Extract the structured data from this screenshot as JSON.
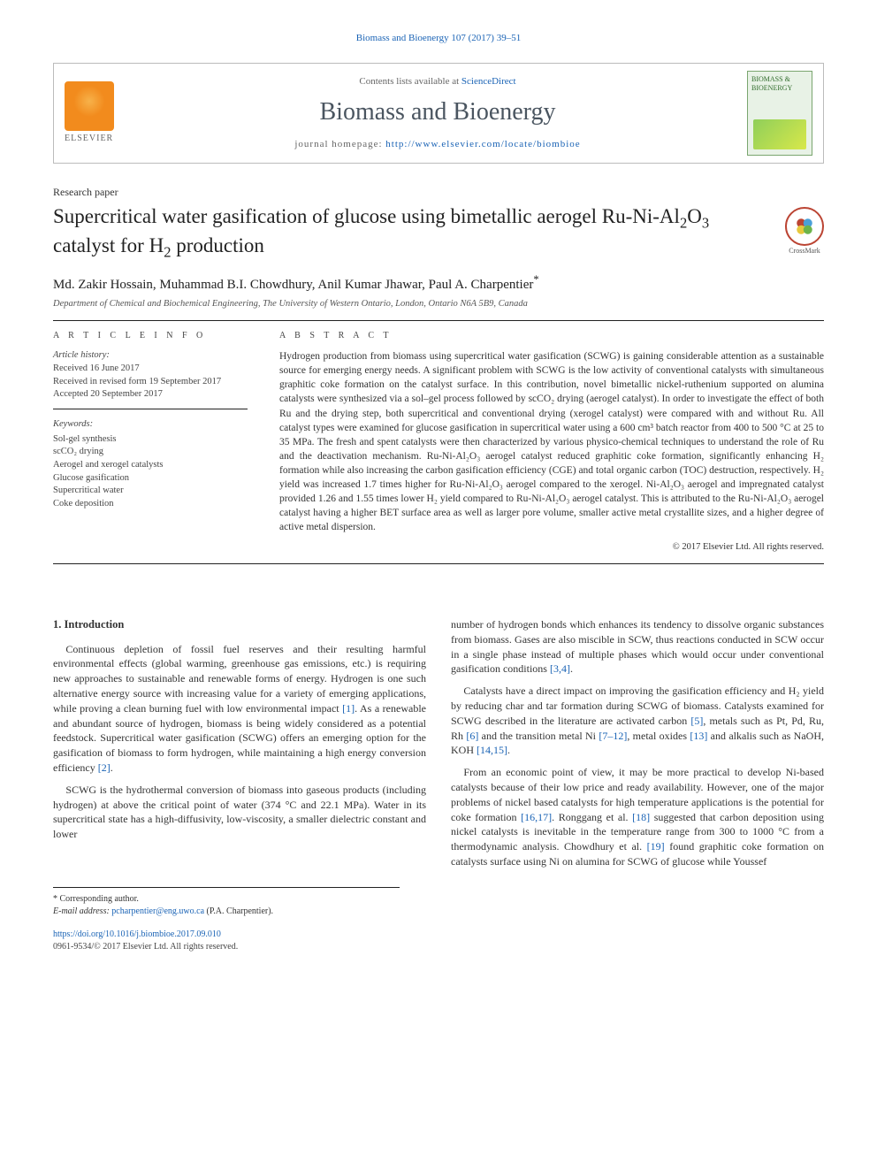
{
  "header": {
    "citation": "Biomass and Bioenergy 107 (2017) 39–51",
    "contents_prefix": "Contents lists available at ",
    "contents_link": "ScienceDirect",
    "journal_name": "Biomass and Bioenergy",
    "homepage_prefix": "journal homepage: ",
    "homepage_url": "http://www.elsevier.com/locate/biombioe",
    "publisher_word": "ELSEVIER",
    "cover_text": "BIOMASS & BIOENERGY"
  },
  "paper": {
    "type": "Research paper",
    "title_html": "Supercritical water gasification of glucose using bimetallic aerogel Ru-Ni-Al<sub>2</sub>O<sub>3</sub> catalyst for H<sub>2</sub> production",
    "crossmark_label": "CrossMark",
    "authors": "Md. Zakir Hossain, Muhammad B.I. Chowdhury, Anil Kumar Jhawar, Paul A. Charpentier",
    "corresponding_marker": "*",
    "affiliation": "Department of Chemical and Biochemical Engineering, The University of Western Ontario, London, Ontario N6A 5B9, Canada"
  },
  "article_info": {
    "heading": "A R T I C L E  I N F O",
    "history_label": "Article history:",
    "received": "Received 16 June 2017",
    "revised": "Received in revised form 19 September 2017",
    "accepted": "Accepted 20 September 2017",
    "keywords_label": "Keywords:",
    "keywords": [
      "Sol-gel synthesis",
      "scCO₂ drying",
      "Aerogel and xerogel catalysts",
      "Glucose gasification",
      "Supercritical water",
      "Coke deposition"
    ]
  },
  "abstract": {
    "heading": "A B S T R A C T",
    "text": "Hydrogen production from biomass using supercritical water gasification (SCWG) is gaining considerable attention as a sustainable source for emerging energy needs. A significant problem with SCWG is the low activity of conventional catalysts with simultaneous graphitic coke formation on the catalyst surface. In this contribution, novel bimetallic nickel-ruthenium supported on alumina catalysts were synthesized via a sol–gel process followed by scCO₂ drying (aerogel catalyst). In order to investigate the effect of both Ru and the drying step, both supercritical and conventional drying (xerogel catalyst) were compared with and without Ru. All catalyst types were examined for glucose gasification in supercritical water using a 600 cm³ batch reactor from 400 to 500 °C at 25 to 35 MPa. The fresh and spent catalysts were then characterized by various physico-chemical techniques to understand the role of Ru and the deactivation mechanism. Ru-Ni-Al₂O₃ aerogel catalyst reduced graphitic coke formation, significantly enhancing H₂ formation while also increasing the carbon gasification efficiency (CGE) and total organic carbon (TOC) destruction, respectively. H₂ yield was increased 1.7 times higher for Ru-Ni-Al₂O₃ aerogel compared to the xerogel. Ni-Al₂O₃ aerogel and impregnated catalyst provided 1.26 and 1.55 times lower H₂ yield compared to Ru-Ni-Al₂O₃ aerogel catalyst. This is attributed to the Ru-Ni-Al₂O₃ aerogel catalyst having a higher BET surface area as well as larger pore volume, smaller active metal crystallite sizes, and a higher degree of active metal dispersion.",
    "copyright": "© 2017 Elsevier Ltd. All rights reserved."
  },
  "body": {
    "section_number": "1.",
    "section_title": "Introduction",
    "p1": "Continuous depletion of fossil fuel reserves and their resulting harmful environmental effects (global warming, greenhouse gas emissions, etc.) is requiring new approaches to sustainable and renewable forms of energy. Hydrogen is one such alternative energy source with increasing value for a variety of emerging applications, while proving a clean burning fuel with low environmental impact [1]. As a renewable and abundant source of hydrogen, biomass is being widely considered as a potential feedstock. Supercritical water gasification (SCWG) offers an emerging option for the gasification of biomass to form hydrogen, while maintaining a high energy conversion efficiency [2].",
    "p2": "SCWG is the hydrothermal conversion of biomass into gaseous products (including hydrogen) at above the critical point of water (374 °C and 22.1 MPa). Water in its supercritical state has a high-diffusivity, low-viscosity, a smaller dielectric constant and lower",
    "p3": "number of hydrogen bonds which enhances its tendency to dissolve organic substances from biomass. Gases are also miscible in SCW, thus reactions conducted in SCW occur in a single phase instead of multiple phases which would occur under conventional gasification conditions [3,4].",
    "p4": "Catalysts have a direct impact on improving the gasification efficiency and H₂ yield by reducing char and tar formation during SCWG of biomass. Catalysts examined for SCWG described in the literature are activated carbon [5], metals such as Pt, Pd, Ru, Rh [6] and the transition metal Ni [7–12], metal oxides [13] and alkalis such as NaOH, KOH [14,15].",
    "p5": "From an economic point of view, it may be more practical to develop Ni-based catalysts because of their low price and ready availability. However, one of the major problems of nickel based catalysts for high temperature applications is the potential for coke formation [16,17]. Ronggang et al. [18] suggested that carbon deposition using nickel catalysts is inevitable in the temperature range from 300 to 1000 °C from a thermodynamic analysis. Chowdhury et al. [19] found graphitic coke formation on catalysts surface using Ni on alumina for SCWG of glucose while Youssef"
  },
  "refs": {
    "r1": "[1]",
    "r2": "[2]",
    "r3": "[3,4]",
    "r5": "[5]",
    "r6": "[6]",
    "r7": "[7–12]",
    "r13": "[13]",
    "r14": "[14,15]",
    "r16": "[16,17]",
    "r18": "[18]",
    "r19": "[19]"
  },
  "footnote": {
    "corresponding": "* Corresponding author.",
    "email_label": "E-mail address: ",
    "email": "pcharpentier@eng.uwo.ca",
    "email_suffix": " (P.A. Charpentier)."
  },
  "bottom": {
    "doi": "https://doi.org/10.1016/j.biombioe.2017.09.010",
    "issn_line": "0961-9534/© 2017 Elsevier Ltd. All rights reserved."
  },
  "colors": {
    "link": "#1a63b5",
    "rule": "#222222",
    "elsevier_orange": "#f28b1d",
    "cover_green": "#7aa66f"
  }
}
